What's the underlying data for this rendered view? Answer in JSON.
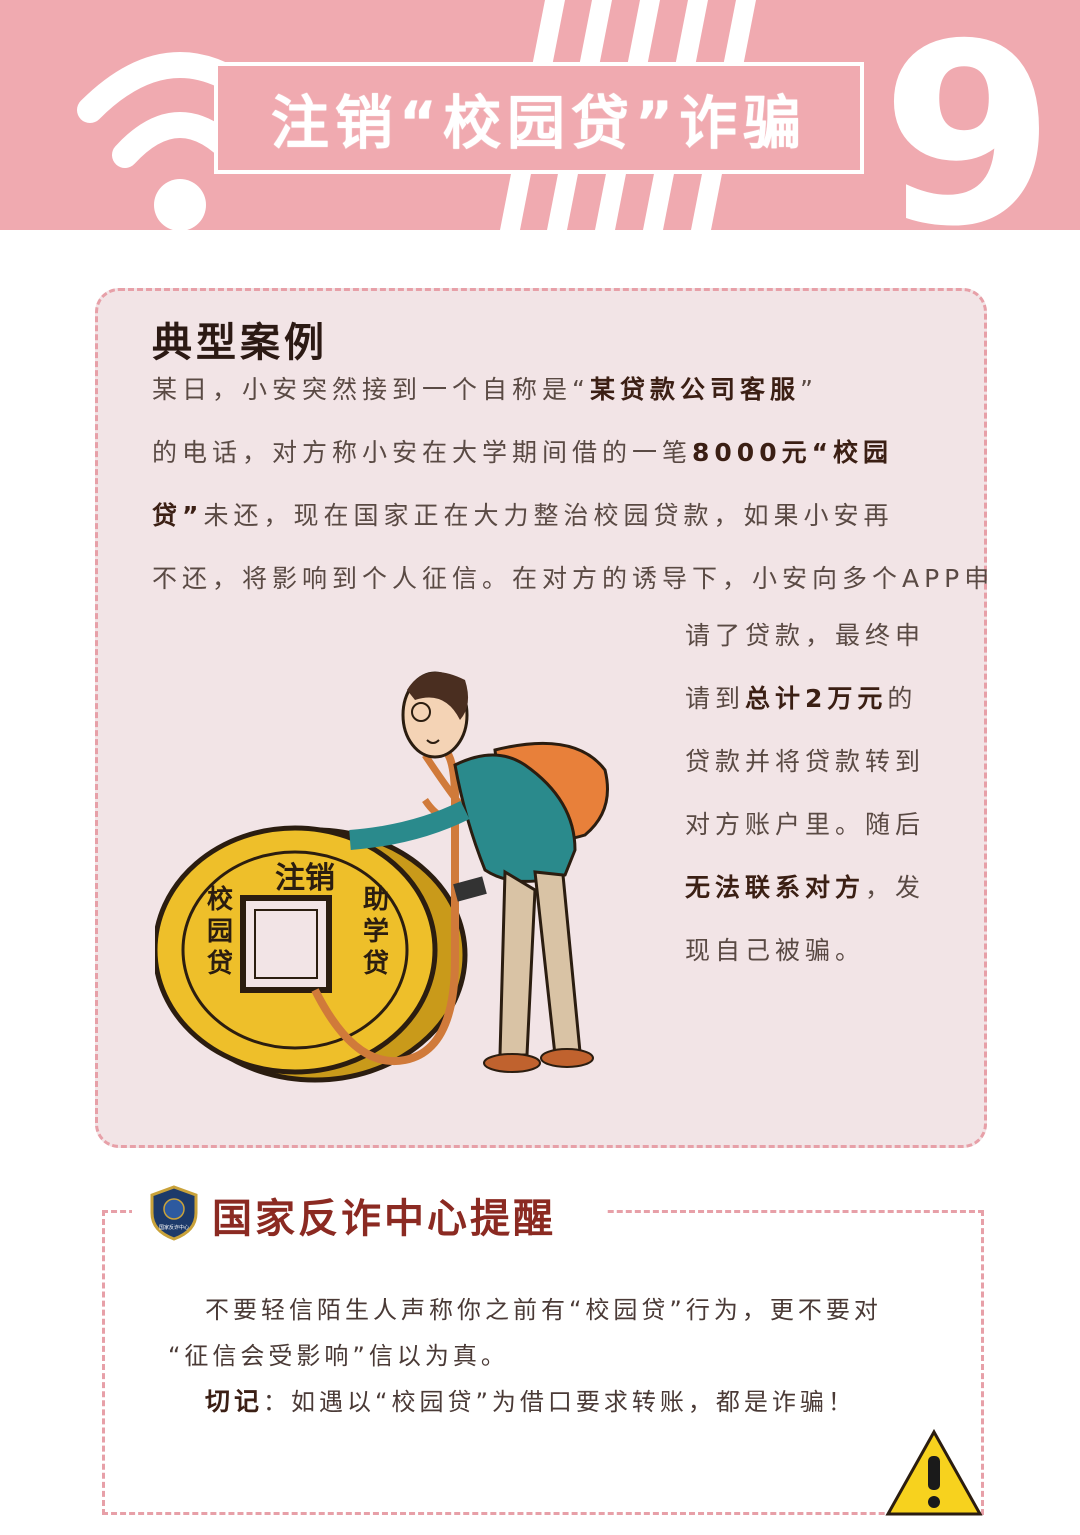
{
  "header": {
    "title": "注销“校园贷”诈骗",
    "number": "9",
    "bg_color": "#f0aab0"
  },
  "case": {
    "heading": "典型案例",
    "paragraph_lines": [
      [
        {
          "t": "某日，小安突然接到一个自称是“"
        },
        {
          "t": "某贷款公司客服",
          "b": true
        },
        {
          "t": "”"
        }
      ],
      [
        {
          "t": "的电话，对方称小安在大学期间借的一笔"
        },
        {
          "t": "8000元“校园",
          "b": true
        }
      ],
      [
        {
          "t": "贷”",
          "b": true
        },
        {
          "t": "未还，现在国家正在大力整治校园贷款，如果小安再"
        }
      ],
      [
        {
          "t": "不还，将影响到个人征信。在对方的诱导下，小安向多个APP申"
        }
      ]
    ],
    "side_lines": [
      [
        {
          "t": "请了贷款，最终申"
        }
      ],
      [
        {
          "t": "请到"
        },
        {
          "t": "总计2万元",
          "b": true
        },
        {
          "t": "的"
        }
      ],
      [
        {
          "t": "贷款并将贷款转到"
        }
      ],
      [
        {
          "t": "对方账户里。随后"
        }
      ],
      [
        {
          "t": "无法联系对方",
          "b": true
        },
        {
          "t": "，发"
        }
      ],
      [
        {
          "t": "现自己被骗。"
        }
      ]
    ],
    "coin": {
      "top": "注销",
      "left": "校园贷",
      "right": "助学贷"
    }
  },
  "reminder": {
    "title": "国家反诈中心提醒",
    "badge_text": "国家反诈中心",
    "line1": "不要轻信陌生人声称你之前有“校园贷”行为，更不要对",
    "line2": "“征信会受影响”信以为真。",
    "line3_bold": "切记",
    "line3_rest": "：如遇以“校园贷”为借口要求转账，都是诈骗！"
  }
}
